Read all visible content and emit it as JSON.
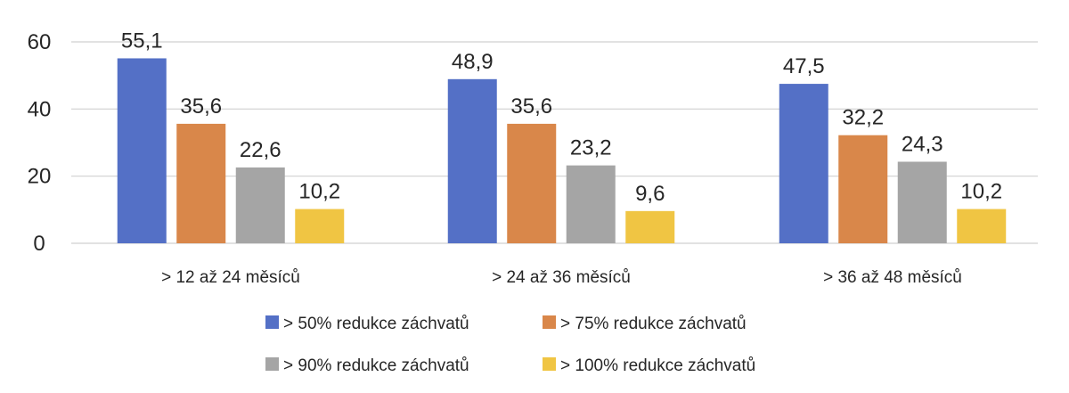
{
  "chart_data": {
    "type": "bar",
    "title": "",
    "xlabel": "",
    "ylabel": "",
    "ylim": [
      0,
      60
    ],
    "yticks": [
      0,
      20,
      40,
      60
    ],
    "grid": true,
    "legend_position": "bottom",
    "categories": [
      "> 12 až 24 měsíců",
      "> 24 až 36 měsíců",
      "> 36 až 48 měsíců"
    ],
    "series": [
      {
        "name": "> 50% redukce záchvatů",
        "color": "#5470C6",
        "values": [
          55.1,
          48.9,
          47.5
        ],
        "labels": [
          "55,1",
          "48,9",
          "47,5"
        ]
      },
      {
        "name": "> 75% redukce záchvatů",
        "color": "#D9874A",
        "values": [
          35.6,
          35.6,
          32.2
        ],
        "labels": [
          "35,6",
          "35,6",
          "32,2"
        ]
      },
      {
        "name": "> 90% redukce záchvatů",
        "color": "#A5A5A5",
        "values": [
          22.6,
          23.2,
          24.3
        ],
        "labels": [
          "22,6",
          "23,2",
          "24,3"
        ]
      },
      {
        "name": "> 100% redukce záchvatů",
        "color": "#F0C543",
        "values": [
          10.2,
          9.6,
          10.2
        ],
        "labels": [
          "10,2",
          "9,6",
          "10,2"
        ]
      }
    ]
  }
}
